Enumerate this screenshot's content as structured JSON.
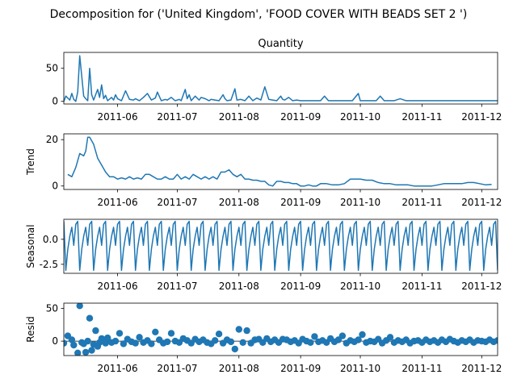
{
  "figure": {
    "title": "Decomposition for ('United Kingdom', 'FOOD COVER WITH BEADS SET 2 ')"
  },
  "chart_data": [
    {
      "type": "line",
      "panel": "observed",
      "title": "Quantity",
      "ylabel": "",
      "xlim": [
        "2011-05-05",
        "2011-12-09"
      ],
      "ylim": [
        -4,
        74
      ],
      "yticks": [
        0,
        50
      ],
      "xticks": [
        "2011-06",
        "2011-07",
        "2011-08",
        "2011-09",
        "2011-10",
        "2011-11",
        "2011-12"
      ],
      "x": [
        "2011-05-05",
        "2011-05-06",
        "2011-05-08",
        "2011-05-09",
        "2011-05-10",
        "2011-05-11",
        "2011-05-12",
        "2011-05-13",
        "2011-05-15",
        "2011-05-16",
        "2011-05-17",
        "2011-05-18",
        "2011-05-19",
        "2011-05-20",
        "2011-05-22",
        "2011-05-23",
        "2011-05-24",
        "2011-05-25",
        "2011-05-26",
        "2011-05-27",
        "2011-05-29",
        "2011-05-30",
        "2011-05-31",
        "2011-06-01",
        "2011-06-03",
        "2011-06-05",
        "2011-06-07",
        "2011-06-09",
        "2011-06-10",
        "2011-06-12",
        "2011-06-14",
        "2011-06-16",
        "2011-06-18",
        "2011-06-20",
        "2011-06-21",
        "2011-06-23",
        "2011-06-25",
        "2011-06-26",
        "2011-06-28",
        "2011-06-30",
        "2011-07-02",
        "2011-07-03",
        "2011-07-05",
        "2011-07-06",
        "2011-07-07",
        "2011-07-08",
        "2011-07-10",
        "2011-07-12",
        "2011-07-13",
        "2011-07-15",
        "2011-07-17",
        "2011-07-18",
        "2011-07-20",
        "2011-07-22",
        "2011-07-24",
        "2011-07-25",
        "2011-07-26",
        "2011-07-28",
        "2011-07-30",
        "2011-07-31",
        "2011-08-02",
        "2011-08-04",
        "2011-08-06",
        "2011-08-08",
        "2011-08-10",
        "2011-08-12",
        "2011-08-14",
        "2011-08-16",
        "2011-08-18",
        "2011-08-20",
        "2011-08-22",
        "2011-08-23",
        "2011-08-24",
        "2011-08-26",
        "2011-08-28",
        "2011-08-30",
        "2011-09-01",
        "2011-09-03",
        "2011-09-05",
        "2011-09-07",
        "2011-09-09",
        "2011-09-11",
        "2011-09-13",
        "2011-09-15",
        "2011-09-18",
        "2011-09-21",
        "2011-09-24",
        "2011-09-27",
        "2011-09-30",
        "2011-10-01",
        "2011-10-03",
        "2011-10-05",
        "2011-10-07",
        "2011-10-09",
        "2011-10-11",
        "2011-10-13",
        "2011-10-15",
        "2011-10-18",
        "2011-10-21",
        "2011-10-24",
        "2011-10-27",
        "2011-10-30",
        "2011-11-02",
        "2011-11-05",
        "2011-11-08",
        "2011-11-11",
        "2011-11-14",
        "2011-11-17",
        "2011-11-20",
        "2011-11-23",
        "2011-11-26",
        "2011-11-29",
        "2011-12-02",
        "2011-12-04",
        "2011-12-06",
        "2011-12-08",
        "2011-12-09"
      ],
      "y": [
        0,
        8,
        2,
        12,
        3,
        0,
        14,
        69,
        8,
        4,
        1,
        50,
        10,
        2,
        18,
        6,
        25,
        4,
        9,
        1,
        6,
        2,
        10,
        4,
        1,
        16,
        3,
        2,
        4,
        1,
        6,
        12,
        2,
        5,
        14,
        1,
        3,
        2,
        6,
        1,
        3,
        1,
        18,
        4,
        10,
        1,
        8,
        2,
        6,
        4,
        1,
        3,
        2,
        1,
        10,
        4,
        1,
        2,
        19,
        2,
        3,
        1,
        8,
        1,
        5,
        2,
        22,
        3,
        2,
        1,
        8,
        3,
        2,
        6,
        1,
        2,
        1,
        1,
        1,
        1,
        1,
        1,
        8,
        1,
        1,
        1,
        1,
        1,
        12,
        1,
        1,
        1,
        1,
        1,
        8,
        1,
        1,
        1,
        4,
        1,
        1,
        1,
        1,
        1,
        1,
        1,
        1,
        1,
        1,
        1,
        1,
        1,
        1,
        1,
        1,
        1,
        1
      ],
      "series": [
        {
          "name": "",
          "values_ref": "y"
        }
      ]
    },
    {
      "type": "line",
      "panel": "trend",
      "ylabel": "Trend",
      "xlim": [
        "2011-05-05",
        "2011-12-09"
      ],
      "ylim": [
        -1.5,
        22.5
      ],
      "yticks": [
        0,
        20
      ],
      "xticks": [
        "2011-06",
        "2011-07",
        "2011-08",
        "2011-09",
        "2011-10",
        "2011-11",
        "2011-12"
      ],
      "x": [
        "2011-05-07",
        "2011-05-09",
        "2011-05-11",
        "2011-05-13",
        "2011-05-15",
        "2011-05-16",
        "2011-05-17",
        "2011-05-18",
        "2011-05-20",
        "2011-05-22",
        "2011-05-24",
        "2011-05-26",
        "2011-05-28",
        "2011-05-30",
        "2011-06-01",
        "2011-06-03",
        "2011-06-05",
        "2011-06-07",
        "2011-06-09",
        "2011-06-11",
        "2011-06-13",
        "2011-06-15",
        "2011-06-17",
        "2011-06-19",
        "2011-06-21",
        "2011-06-23",
        "2011-06-25",
        "2011-06-27",
        "2011-06-29",
        "2011-07-01",
        "2011-07-03",
        "2011-07-05",
        "2011-07-07",
        "2011-07-09",
        "2011-07-11",
        "2011-07-13",
        "2011-07-15",
        "2011-07-17",
        "2011-07-19",
        "2011-07-21",
        "2011-07-23",
        "2011-07-25",
        "2011-07-27",
        "2011-07-29",
        "2011-07-31",
        "2011-08-02",
        "2011-08-04",
        "2011-08-06",
        "2011-08-08",
        "2011-08-10",
        "2011-08-12",
        "2011-08-14",
        "2011-08-16",
        "2011-08-18",
        "2011-08-20",
        "2011-08-22",
        "2011-08-24",
        "2011-08-26",
        "2011-08-28",
        "2011-08-30",
        "2011-09-01",
        "2011-09-03",
        "2011-09-05",
        "2011-09-07",
        "2011-09-09",
        "2011-09-11",
        "2011-09-14",
        "2011-09-17",
        "2011-09-20",
        "2011-09-23",
        "2011-09-26",
        "2011-09-29",
        "2011-10-01",
        "2011-10-04",
        "2011-10-07",
        "2011-10-10",
        "2011-10-13",
        "2011-10-16",
        "2011-10-19",
        "2011-10-22",
        "2011-10-25",
        "2011-10-28",
        "2011-10-31",
        "2011-11-03",
        "2011-11-06",
        "2011-11-09",
        "2011-11-12",
        "2011-11-15",
        "2011-11-18",
        "2011-11-21",
        "2011-11-24",
        "2011-11-27",
        "2011-11-30",
        "2011-12-03",
        "2011-12-06"
      ],
      "y": [
        5,
        4,
        8,
        14,
        13,
        15,
        21,
        21,
        18,
        12,
        9,
        6,
        4,
        4,
        3,
        3.5,
        3,
        4,
        3,
        3.5,
        3,
        5,
        5,
        4,
        3,
        3,
        4,
        3,
        3,
        5,
        3,
        4,
        3,
        5,
        4,
        3,
        4,
        3,
        4,
        3,
        6,
        6,
        7,
        5,
        4,
        5,
        3,
        3,
        2.5,
        2.5,
        2,
        2,
        0.5,
        0,
        2,
        2,
        1.5,
        1.5,
        1,
        1,
        0,
        0,
        0.5,
        0,
        0,
        1,
        1,
        0.5,
        0.5,
        1,
        3,
        3,
        3,
        2.5,
        2.5,
        1.5,
        1,
        1,
        0.5,
        0.5,
        0.5,
        0,
        0,
        0,
        0,
        0.5,
        1,
        1,
        1,
        1,
        1.5,
        1.5,
        1,
        0.5,
        0.7
      ],
      "series": [
        {
          "name": "",
          "values_ref": "y"
        }
      ]
    },
    {
      "type": "line",
      "panel": "seasonal",
      "ylabel": "Seasonal",
      "xlim": [
        "2011-05-05",
        "2011-12-09"
      ],
      "ylim": [
        -3.4,
        2.0
      ],
      "yticks": [
        0.0,
        -2.5
      ],
      "xticks": [
        "2011-06",
        "2011-07",
        "2011-08",
        "2011-09",
        "2011-10",
        "2011-11",
        "2011-12"
      ],
      "period_days": 7,
      "start": "2011-05-05",
      "end": "2011-12-09",
      "pattern": [
        1.8,
        -3.1,
        -1.0,
        0.3,
        1.2,
        -0.6,
        1.5
      ],
      "series": [
        {
          "name": "",
          "values_ref": "pattern"
        }
      ]
    },
    {
      "type": "scatter",
      "panel": "resid",
      "ylabel": "Resid",
      "xlim": [
        "2011-05-05",
        "2011-12-09"
      ],
      "ylim": [
        -22,
        58
      ],
      "yticks": [
        0,
        50
      ],
      "xticks": [
        "2011-06",
        "2011-07",
        "2011-08",
        "2011-09",
        "2011-10",
        "2011-11",
        "2011-12"
      ],
      "x": [
        "2011-05-05",
        "2011-05-07",
        "2011-05-09",
        "2011-05-10",
        "2011-05-12",
        "2011-05-13",
        "2011-05-14",
        "2011-05-15",
        "2011-05-16",
        "2011-05-17",
        "2011-05-18",
        "2011-05-19",
        "2011-05-20",
        "2011-05-21",
        "2011-05-22",
        "2011-05-23",
        "2011-05-24",
        "2011-05-25",
        "2011-05-26",
        "2011-05-27",
        "2011-05-29",
        "2011-05-31",
        "2011-06-02",
        "2011-06-04",
        "2011-06-06",
        "2011-06-08",
        "2011-06-10",
        "2011-06-12",
        "2011-06-14",
        "2011-06-16",
        "2011-06-18",
        "2011-06-20",
        "2011-06-22",
        "2011-06-24",
        "2011-06-26",
        "2011-06-28",
        "2011-06-30",
        "2011-07-02",
        "2011-07-04",
        "2011-07-06",
        "2011-07-08",
        "2011-07-10",
        "2011-07-12",
        "2011-07-14",
        "2011-07-16",
        "2011-07-18",
        "2011-07-20",
        "2011-07-22",
        "2011-07-24",
        "2011-07-26",
        "2011-07-28",
        "2011-07-30",
        "2011-08-01",
        "2011-08-03",
        "2011-08-05",
        "2011-08-07",
        "2011-08-09",
        "2011-08-11",
        "2011-08-13",
        "2011-08-15",
        "2011-08-17",
        "2011-08-19",
        "2011-08-21",
        "2011-08-23",
        "2011-08-25",
        "2011-08-27",
        "2011-08-29",
        "2011-08-31",
        "2011-09-02",
        "2011-09-04",
        "2011-09-06",
        "2011-09-08",
        "2011-09-10",
        "2011-09-12",
        "2011-09-14",
        "2011-09-16",
        "2011-09-18",
        "2011-09-20",
        "2011-09-22",
        "2011-09-24",
        "2011-09-26",
        "2011-09-28",
        "2011-09-30",
        "2011-10-02",
        "2011-10-04",
        "2011-10-06",
        "2011-10-08",
        "2011-10-10",
        "2011-10-12",
        "2011-10-14",
        "2011-10-16",
        "2011-10-18",
        "2011-10-20",
        "2011-10-22",
        "2011-10-24",
        "2011-10-26",
        "2011-10-28",
        "2011-10-30",
        "2011-11-01",
        "2011-11-03",
        "2011-11-05",
        "2011-11-07",
        "2011-11-09",
        "2011-11-11",
        "2011-11-13",
        "2011-11-15",
        "2011-11-17",
        "2011-11-19",
        "2011-11-21",
        "2011-11-23",
        "2011-11-25",
        "2011-11-27",
        "2011-11-29",
        "2011-12-01",
        "2011-12-03",
        "2011-12-05",
        "2011-12-07",
        "2011-12-09"
      ],
      "y": [
        -3,
        8,
        2,
        -6,
        -18,
        54,
        -2,
        -4,
        -17,
        0,
        35,
        -14,
        -5,
        16,
        -8,
        -2,
        4,
        2,
        -3,
        5,
        -2,
        0,
        12,
        -4,
        3,
        -1,
        -3,
        6,
        -2,
        1,
        -4,
        14,
        2,
        -3,
        -1,
        12,
        0,
        -2,
        4,
        1,
        -3,
        3,
        -1,
        2,
        -2,
        -4,
        1,
        11,
        -3,
        2,
        -1,
        -12,
        18,
        -2,
        16,
        -3,
        2,
        3,
        -2,
        4,
        -1,
        2,
        -2,
        3,
        2,
        -1,
        1,
        -3,
        3,
        0,
        -2,
        7,
        -1,
        1,
        -2,
        4,
        -1,
        2,
        8,
        -3,
        1,
        -1,
        2,
        10,
        -2,
        0,
        -1,
        3,
        -3,
        1,
        6,
        -2,
        1,
        -1,
        2,
        -3,
        0,
        1,
        -2,
        2,
        -1,
        1,
        -2,
        2,
        -1,
        3,
        0,
        -2,
        1,
        -1,
        2,
        -2,
        1,
        0,
        -1,
        2,
        -1,
        1
      ],
      "zero_line": true,
      "series": [
        {
          "name": "",
          "values_ref": "y"
        }
      ]
    }
  ]
}
